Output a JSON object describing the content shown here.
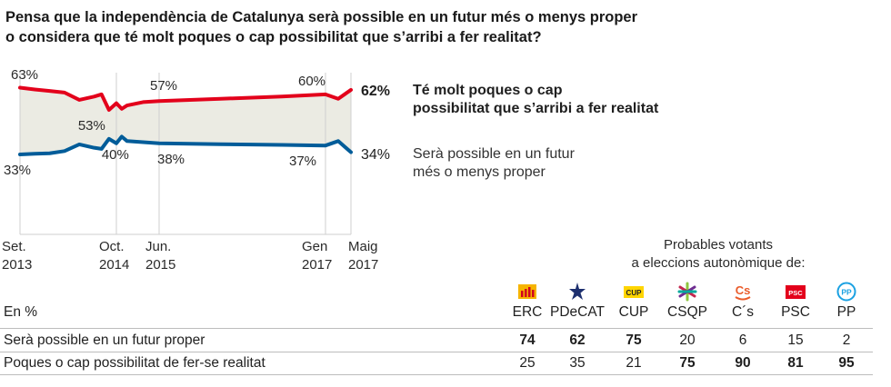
{
  "title": {
    "line1": "Pensa que la independència de Catalunya serà possible en un futur més o menys proper",
    "line2": "o considera que té molt poques o cap possibilitat que s’arribi a fer realitat?"
  },
  "chart_data": {
    "type": "line",
    "colors": {
      "series_red": "#e3001b",
      "series_blue": "#005c99",
      "area": "#ebebe3"
    },
    "x_ticks": [
      {
        "line1": "Set.",
        "line2": "2013"
      },
      {
        "line1": "Oct.",
        "line2": "2014"
      },
      {
        "line1": "Jun.",
        "line2": "2015"
      },
      {
        "line1": "Gen",
        "line2": "2017"
      },
      {
        "line1": "Maig",
        "line2": "2017"
      }
    ],
    "series": [
      {
        "name": "Té molt poques o cap possibilitat que s’arribi a fer realitat",
        "name_line1": "Té molt poques o cap",
        "name_line2": "possibilitat que s’arribi a fer realitat",
        "color": "#e3001b",
        "end_label": "62%",
        "points": [
          [
            "2013-09",
            63
          ],
          [
            "2013-11",
            62.2
          ],
          [
            "2014-01",
            61.5
          ],
          [
            "2014-03",
            60.8
          ],
          [
            "2014-05",
            57.5
          ],
          [
            "2014-07",
            59
          ],
          [
            "2014-08",
            60
          ],
          [
            "2014-09",
            53
          ],
          [
            "2014-10",
            56
          ],
          [
            "2014-11",
            53.5
          ],
          [
            "2014-12",
            55
          ],
          [
            "2015-03",
            56.5
          ],
          [
            "2015-06",
            57
          ],
          [
            "2016-01",
            58
          ],
          [
            "2016-08",
            59
          ],
          [
            "2017-01",
            60
          ],
          [
            "2017-03",
            58
          ],
          [
            "2017-05",
            62
          ]
        ]
      },
      {
        "name": "Serà possible en un futur més o menys proper",
        "name_line1": "Serà possible en un futur",
        "name_line2": "més o menys proper",
        "color": "#005c99",
        "end_label": "34%",
        "points": [
          [
            "2013-09",
            33
          ],
          [
            "2013-11",
            33.3
          ],
          [
            "2014-01",
            33.5
          ],
          [
            "2014-03",
            34.5
          ],
          [
            "2014-05",
            37.5
          ],
          [
            "2014-07",
            36
          ],
          [
            "2014-08",
            35.5
          ],
          [
            "2014-09",
            40
          ],
          [
            "2014-10",
            38
          ],
          [
            "2014-11",
            41
          ],
          [
            "2014-12",
            39
          ],
          [
            "2015-03",
            38.5
          ],
          [
            "2015-06",
            38
          ],
          [
            "2016-01",
            37.6
          ],
          [
            "2016-08",
            37.3
          ],
          [
            "2017-01",
            37
          ],
          [
            "2017-03",
            39
          ],
          [
            "2017-05",
            34
          ]
        ]
      }
    ],
    "annotations": [
      {
        "label": "63%",
        "date": "2013-09",
        "value": 63
      },
      {
        "label": "33%",
        "date": "2013-09",
        "value": 33
      },
      {
        "label": "53%",
        "date": "2014-09",
        "value": 53
      },
      {
        "label": "40%",
        "date": "2014-09",
        "value": 40
      },
      {
        "label": "57%",
        "date": "2015-06",
        "value": 57
      },
      {
        "label": "38%",
        "date": "2015-06",
        "value": 38
      },
      {
        "label": "60%",
        "date": "2017-01",
        "value": 60
      },
      {
        "label": "37%",
        "date": "2017-01",
        "value": 37
      }
    ],
    "y_domain": [
      30,
      66
    ]
  },
  "table": {
    "header_line1": "Probables votants",
    "header_line2": "a eleccions autonòmique de:",
    "unit_label": "En %",
    "parties": [
      {
        "name": "ERC",
        "icon": "erc-logo-icon",
        "color": "#f2a900"
      },
      {
        "name": "PDeCAT",
        "icon": "pdecat-logo-icon",
        "color": "#1d2f6f"
      },
      {
        "name": "CUP",
        "icon": "cup-logo-icon",
        "color": "#ffd500"
      },
      {
        "name": "CSQP",
        "icon": "csqp-logo-icon",
        "color": "#c3274f"
      },
      {
        "name": "C´s",
        "icon": "cs-logo-icon",
        "color": "#ea5b2a"
      },
      {
        "name": "PSC",
        "icon": "psc-logo-icon",
        "color": "#e3001b"
      },
      {
        "name": "PP",
        "icon": "pp-logo-icon",
        "color": "#1ba1e2"
      }
    ],
    "rows": [
      {
        "label": "Serà possible en un futur proper",
        "values": [
          "74",
          "62",
          "75",
          "20",
          "6",
          "15",
          "2"
        ],
        "bold": [
          true,
          true,
          true,
          false,
          false,
          false,
          false
        ]
      },
      {
        "label": "Poques o cap possibilitat de fer-se realitat",
        "values": [
          "25",
          "35",
          "21",
          "75",
          "90",
          "81",
          "95"
        ],
        "bold": [
          false,
          false,
          false,
          true,
          true,
          true,
          true
        ]
      }
    ]
  }
}
